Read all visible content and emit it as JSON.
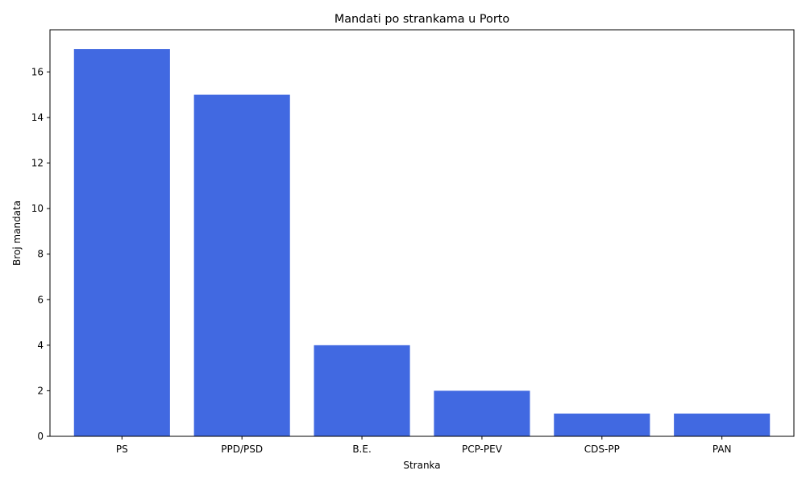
{
  "chart_data": {
    "type": "bar",
    "title": "Mandati po strankama u Porto",
    "xlabel": "Stranka",
    "ylabel": "Broj mandata",
    "categories": [
      "PS",
      "PPD/PSD",
      "B.E.",
      "PCP-PEV",
      "CDS-PP",
      "PAN"
    ],
    "values": [
      17,
      15,
      4,
      2,
      1,
      1
    ],
    "ylim": [
      0,
      17.85
    ],
    "yticks": [
      "0",
      "2",
      "4",
      "6",
      "8",
      "10",
      "12",
      "14",
      "16"
    ],
    "bar_color": "#4169e1",
    "grid": false,
    "legend": "none"
  }
}
